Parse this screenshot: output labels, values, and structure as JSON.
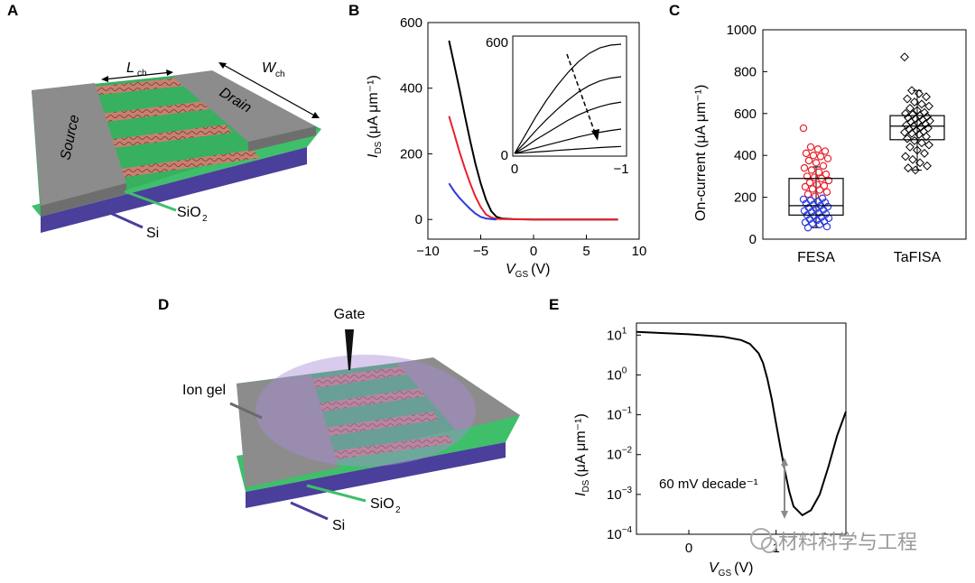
{
  "panels": {
    "A": {
      "letter": "A",
      "labels": {
        "source": "Source",
        "drain": "Drain",
        "lch": "L",
        "lch_sub": "ch",
        "wch": "W",
        "wch_sub": "ch",
        "sio2": "SiO",
        "sio2_sub": "2",
        "si": "Si"
      }
    },
    "B": {
      "letter": "B",
      "ylabel": "I",
      "ylabel_sub": "DS",
      "ylabel_unit": "(μA μm⁻¹)",
      "xlabel": "V",
      "xlabel_sub": "GS",
      "xlabel_unit": "(V)",
      "yticks": [
        "0",
        "200",
        "400",
        "600"
      ],
      "xticks": [
        "−10",
        "−5",
        "0",
        "5",
        "10"
      ],
      "inset_yticks": [
        "0",
        "600"
      ],
      "inset_xticks": [
        "0",
        "−1"
      ]
    },
    "C": {
      "letter": "C",
      "ylabel": "On-current (μA μm⁻¹)",
      "yticks": [
        "0",
        "200",
        "400",
        "600",
        "800",
        "1000"
      ],
      "categories": [
        "FESA",
        "TaFISA"
      ]
    },
    "D": {
      "letter": "D",
      "labels": {
        "gate": "Gate",
        "ion_gel": "Ion gel",
        "sio2": "SiO",
        "sio2_sub": "2",
        "si": "Si"
      }
    },
    "E": {
      "letter": "E",
      "ylabel": "I",
      "ylabel_sub": "DS",
      "ylabel_unit": "(μA μm⁻¹)",
      "xlabel": "V",
      "xlabel_sub": "GS",
      "xlabel_unit": "(V)",
      "yticks": [
        {
          "base": "10",
          "exp": "1"
        },
        {
          "base": "10",
          "exp": "0"
        },
        {
          "base": "10",
          "exp": "−1"
        },
        {
          "base": "10",
          "exp": "−2"
        },
        {
          "base": "10",
          "exp": "−3"
        },
        {
          "base": "10",
          "exp": "−4"
        }
      ],
      "xticks": [
        "0",
        "1"
      ],
      "annotation": "60 mV decade⁻¹"
    }
  },
  "watermark": "材料科学与工程",
  "colors": {
    "black": "#000000",
    "red": "#e8202a",
    "blue": "#2a3adf",
    "green": "#3fbf6a",
    "gray": "#8a8a8a",
    "purple": "#4a3f9a"
  },
  "chart_data": [
    {
      "panel": "B",
      "type": "line",
      "xlabel": "V_GS (V)",
      "ylabel": "I_DS (μA μm⁻¹)",
      "xlim": [
        -10,
        10
      ],
      "ylim": [
        -60,
        600
      ],
      "series": [
        {
          "name": "black",
          "color": "#000000",
          "x": [
            -8,
            -7.5,
            -7,
            -6.5,
            -6,
            -5.5,
            -5,
            -4.5,
            -4,
            -3.5,
            -3,
            -2,
            0,
            8
          ],
          "y": [
            545,
            470,
            395,
            315,
            240,
            170,
            110,
            60,
            25,
            8,
            3,
            1,
            0,
            0
          ]
        },
        {
          "name": "red",
          "color": "#e8202a",
          "x": [
            -8,
            -7.5,
            -7,
            -6.5,
            -6,
            -5.5,
            -5,
            -4.5,
            -4,
            -3.5,
            -3,
            0,
            8
          ],
          "y": [
            315,
            260,
            205,
            155,
            110,
            70,
            38,
            15,
            6,
            2,
            1,
            0,
            0
          ]
        },
        {
          "name": "blue",
          "color": "#2a3adf",
          "x": [
            -8,
            -7.5,
            -7,
            -6.5,
            -6,
            -5.5,
            -5,
            -4.5,
            -4,
            -3.5
          ],
          "y": [
            110,
            85,
            65,
            48,
            32,
            18,
            8,
            3,
            1,
            0
          ]
        }
      ],
      "inset": {
        "type": "line",
        "xlim": [
          0,
          -1
        ],
        "ylim": [
          0,
          600
        ],
        "x": [
          0,
          -0.1,
          -0.2,
          -0.3,
          -0.4,
          -0.5,
          -0.6,
          -0.7,
          -0.8,
          -0.9,
          -1.0
        ],
        "series": [
          {
            "name": "1",
            "y": [
              0,
              100,
              200,
              290,
              370,
              440,
              500,
              545,
              575,
              590,
              595
            ]
          },
          {
            "name": "2",
            "y": [
              0,
              60,
              125,
              185,
              240,
              290,
              335,
              370,
              395,
              410,
              418
            ]
          },
          {
            "name": "3",
            "y": [
              0,
              35,
              75,
              110,
              145,
              180,
              210,
              235,
              255,
              270,
              280
            ]
          },
          {
            "name": "4",
            "y": [
              0,
              15,
              30,
              45,
              60,
              75,
              90,
              103,
              115,
              125,
              133
            ]
          },
          {
            "name": "5",
            "y": [
              0,
              4,
              8,
              12,
              16,
              20,
              24,
              28,
              32,
              35,
              38
            ]
          }
        ]
      }
    },
    {
      "panel": "C",
      "type": "box",
      "ylabel": "On-current (μA μm⁻¹)",
      "ylim": [
        0,
        1000
      ],
      "categories": [
        "FESA",
        "TaFISA"
      ],
      "boxes": [
        {
          "name": "FESA",
          "min": 55,
          "q1": 115,
          "median": 160,
          "q3": 290,
          "max": 345,
          "outliers": [
            530
          ],
          "points": [
            530,
            440,
            430,
            420,
            410,
            400,
            395,
            385,
            375,
            365,
            350,
            340,
            330,
            320,
            310,
            300,
            295,
            290,
            280,
            270,
            260,
            255,
            250,
            240,
            235,
            225,
            215,
            205,
            195,
            190,
            185,
            180,
            175,
            170,
            165,
            160,
            155,
            150,
            145,
            140,
            135,
            130,
            125,
            120,
            115,
            110,
            105,
            100,
            95,
            90,
            85,
            80,
            75,
            70,
            60,
            55
          ]
        },
        {
          "name": "TaFISA",
          "min": 330,
          "q1": 475,
          "median": 540,
          "q3": 590,
          "max": 710,
          "outliers": [
            870
          ],
          "points": [
            870,
            710,
            695,
            680,
            670,
            655,
            645,
            635,
            625,
            615,
            605,
            600,
            595,
            590,
            585,
            580,
            575,
            570,
            565,
            560,
            555,
            550,
            545,
            540,
            535,
            530,
            525,
            520,
            515,
            510,
            505,
            500,
            490,
            480,
            470,
            460,
            450,
            440,
            425,
            410,
            395,
            380,
            365,
            350,
            340,
            330
          ]
        }
      ]
    },
    {
      "panel": "E",
      "type": "line",
      "yscale": "log",
      "xlabel": "V_GS (V)",
      "ylabel": "I_DS (μA μm⁻¹)",
      "xlim": [
        -0.6,
        1.8
      ],
      "ylim": [
        0.0001,
        20
      ],
      "x": [
        -0.6,
        -0.4,
        -0.2,
        0,
        0.2,
        0.4,
        0.6,
        0.7,
        0.8,
        0.85,
        0.9,
        0.95,
        1.0,
        1.05,
        1.1,
        1.15,
        1.2,
        1.3,
        1.4,
        1.5,
        1.6,
        1.7,
        1.8
      ],
      "y": [
        12,
        11.5,
        11,
        10.5,
        9.8,
        9,
        7.5,
        6,
        3.5,
        2,
        0.8,
        0.25,
        0.06,
        0.015,
        0.004,
        0.0012,
        0.0005,
        0.0003,
        0.0004,
        0.001,
        0.005,
        0.03,
        0.12
      ]
    }
  ]
}
